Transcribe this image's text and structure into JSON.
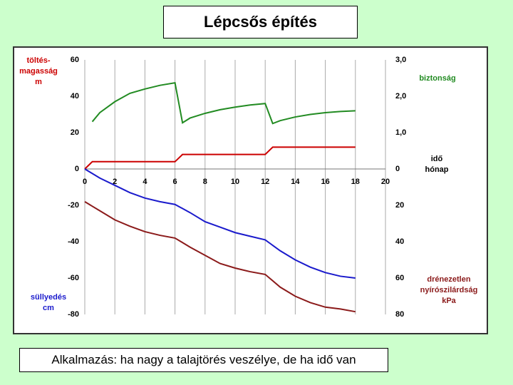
{
  "chart_data": {
    "type": "line",
    "title": "Lépcsős építés",
    "xlim": [
      0,
      20
    ],
    "xticks": [
      0,
      2,
      4,
      6,
      8,
      10,
      12,
      14,
      16,
      18,
      20
    ],
    "ylim": [
      -80,
      60
    ],
    "yticks": [
      -80,
      -60,
      -40,
      -20,
      0,
      20,
      40,
      60
    ],
    "y2lim": [
      -4,
      3
    ],
    "y2ticks": [
      {
        "value": 3,
        "label": "3,0"
      },
      {
        "value": 2,
        "label": "2,0"
      },
      {
        "value": 1,
        "label": "1,0"
      },
      0
    ],
    "y3lim": [
      80,
      -60
    ],
    "y3ticks": [
      20,
      40,
      60,
      80
    ],
    "grid": true,
    "annotations": {
      "embankment": {
        "color": "#cc0000",
        "lines": [
          "töltés-",
          "magasság",
          "m"
        ]
      },
      "settlement": {
        "color": "#1a1acc",
        "lines": [
          "süllyedés",
          "cm"
        ]
      },
      "safety": {
        "color": "#228b22",
        "lines": [
          "biztonság"
        ]
      },
      "time": {
        "color": "#000000",
        "lines": [
          "idő",
          "hónap"
        ]
      },
      "shear": {
        "color": "#8b1a1a",
        "lines": [
          "drénezetlen",
          "nyírószilárdság",
          "kPa"
        ]
      }
    },
    "series": [
      {
        "color": "#cc0000",
        "axis": "y",
        "x": [
          0,
          0.5,
          6,
          6.5,
          12,
          12.5,
          18
        ],
        "values": [
          0,
          4,
          4,
          8,
          8,
          12,
          12
        ]
      },
      {
        "color": "#228b22",
        "axis": "y2",
        "x": [
          0.5,
          1,
          2,
          3,
          4,
          5,
          6,
          6.5,
          7,
          8,
          9,
          10,
          11,
          12,
          12.5,
          13,
          14,
          15,
          16,
          17,
          18
        ],
        "values": [
          1.3,
          1.55,
          1.85,
          2.08,
          2.2,
          2.3,
          2.37,
          1.27,
          1.4,
          1.53,
          1.63,
          1.7,
          1.76,
          1.8,
          1.25,
          1.33,
          1.43,
          1.5,
          1.55,
          1.58,
          1.6
        ]
      },
      {
        "color": "#1a1acc",
        "axis": "y",
        "x": [
          0,
          1,
          2,
          3,
          4,
          5,
          6,
          7,
          8,
          9,
          10,
          11,
          12,
          13,
          14,
          15,
          16,
          17,
          18
        ],
        "values": [
          0,
          -5,
          -9,
          -13,
          -16,
          -18,
          -19.5,
          -24,
          -29,
          -32,
          -35,
          -37,
          -39,
          -45,
          -50,
          -54,
          -57,
          -59,
          -60
        ]
      },
      {
        "color": "#8b1a1a",
        "axis": "y3",
        "x": [
          0,
          1,
          2,
          3,
          4,
          5,
          6,
          7,
          8,
          9,
          10,
          11,
          12,
          13,
          14,
          15,
          16,
          17,
          18
        ],
        "values": [
          18,
          23,
          28,
          31.5,
          34.5,
          36.5,
          38,
          43,
          47.5,
          52,
          54.5,
          56.5,
          58,
          65,
          70,
          73.5,
          76,
          77,
          78.5
        ]
      }
    ]
  },
  "footer": "Alkalmazás: ha nagy a talajtörés veszélye, de ha idő van"
}
